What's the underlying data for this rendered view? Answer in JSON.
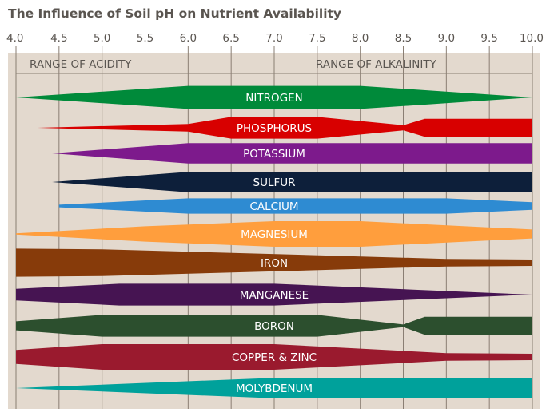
{
  "chart_data": {
    "type": "area",
    "title": "The Influence of Soil pH on Nutrient Availability",
    "xlim": [
      4.0,
      10.0
    ],
    "x_ticks": [
      "4.0",
      "4.5",
      "5.0",
      "5.5",
      "6.0",
      "6.5",
      "7.0",
      "7.5",
      "8.0",
      "8.5",
      "9.0",
      "9.5",
      "10.0"
    ],
    "grid": true,
    "range_labels": {
      "acidity": "RANGE OF ACIDITY",
      "alkalinity": "RANGE OF ALKALINITY"
    },
    "colors": {
      "background": "#E3D9CE",
      "grid": "#8A7E73",
      "title": "#5A5550",
      "label": "#FFFFFF"
    },
    "series": [
      {
        "name": "NITROGEN",
        "color": "#008A3A",
        "points": [
          [
            4.0,
            0
          ],
          [
            6.0,
            0.9
          ],
          [
            8.0,
            0.9
          ],
          [
            10.0,
            0
          ]
        ]
      },
      {
        "name": "PHOSPHORUS",
        "color": "#D80000",
        "points": [
          [
            4.25,
            0
          ],
          [
            6.0,
            0.3
          ],
          [
            6.5,
            0.85
          ],
          [
            7.5,
            0.85
          ],
          [
            8.5,
            0.2
          ],
          [
            8.75,
            0.7
          ],
          [
            10.0,
            0.7
          ]
        ]
      },
      {
        "name": "POTASSIUM",
        "color": "#7D1A8C",
        "points": [
          [
            4.42,
            0
          ],
          [
            6.0,
            0.8
          ],
          [
            10.0,
            0.8
          ]
        ]
      },
      {
        "name": "SULFUR",
        "color": "#0D1F3A",
        "points": [
          [
            4.42,
            0
          ],
          [
            6.0,
            0.8
          ],
          [
            10.0,
            0.8
          ]
        ]
      },
      {
        "name": "CALCIUM",
        "color": "#2E8BD2",
        "points": [
          [
            4.5,
            0.1
          ],
          [
            6.0,
            0.6
          ],
          [
            9.0,
            0.6
          ],
          [
            10.0,
            0.3
          ]
        ]
      },
      {
        "name": "MAGNESIUM",
        "color": "#FF9E3D",
        "points": [
          [
            4.0,
            0.05
          ],
          [
            5.5,
            0.6
          ],
          [
            7.0,
            1.0
          ],
          [
            8.0,
            1.0
          ],
          [
            10.0,
            0.35
          ]
        ]
      },
      {
        "name": "IRON",
        "color": "#873B0A",
        "points": [
          [
            4.0,
            1.1
          ],
          [
            5.0,
            1.05
          ],
          [
            9.0,
            0.3
          ],
          [
            10.0,
            0.25
          ]
        ]
      },
      {
        "name": "MANGANESE",
        "color": "#461452",
        "points": [
          [
            4.0,
            0.45
          ],
          [
            5.2,
            0.85
          ],
          [
            7.0,
            0.85
          ],
          [
            10.0,
            0
          ]
        ]
      },
      {
        "name": "BORON",
        "color": "#2C4F2E",
        "points": [
          [
            4.0,
            0.35
          ],
          [
            5.0,
            0.85
          ],
          [
            7.5,
            0.85
          ],
          [
            8.5,
            0.1
          ],
          [
            8.75,
            0.7
          ],
          [
            10.0,
            0.7
          ]
        ]
      },
      {
        "name": "COPPER & ZINC",
        "color": "#9A1A2E",
        "points": [
          [
            4.0,
            0.55
          ],
          [
            5.0,
            1.0
          ],
          [
            7.0,
            1.0
          ],
          [
            9.0,
            0.3
          ],
          [
            10.0,
            0.25
          ]
        ]
      },
      {
        "name": "MOLYBDENUM",
        "color": "#00A19B",
        "points": [
          [
            4.0,
            0
          ],
          [
            7.0,
            0.8
          ],
          [
            10.0,
            0.8
          ]
        ]
      }
    ]
  }
}
